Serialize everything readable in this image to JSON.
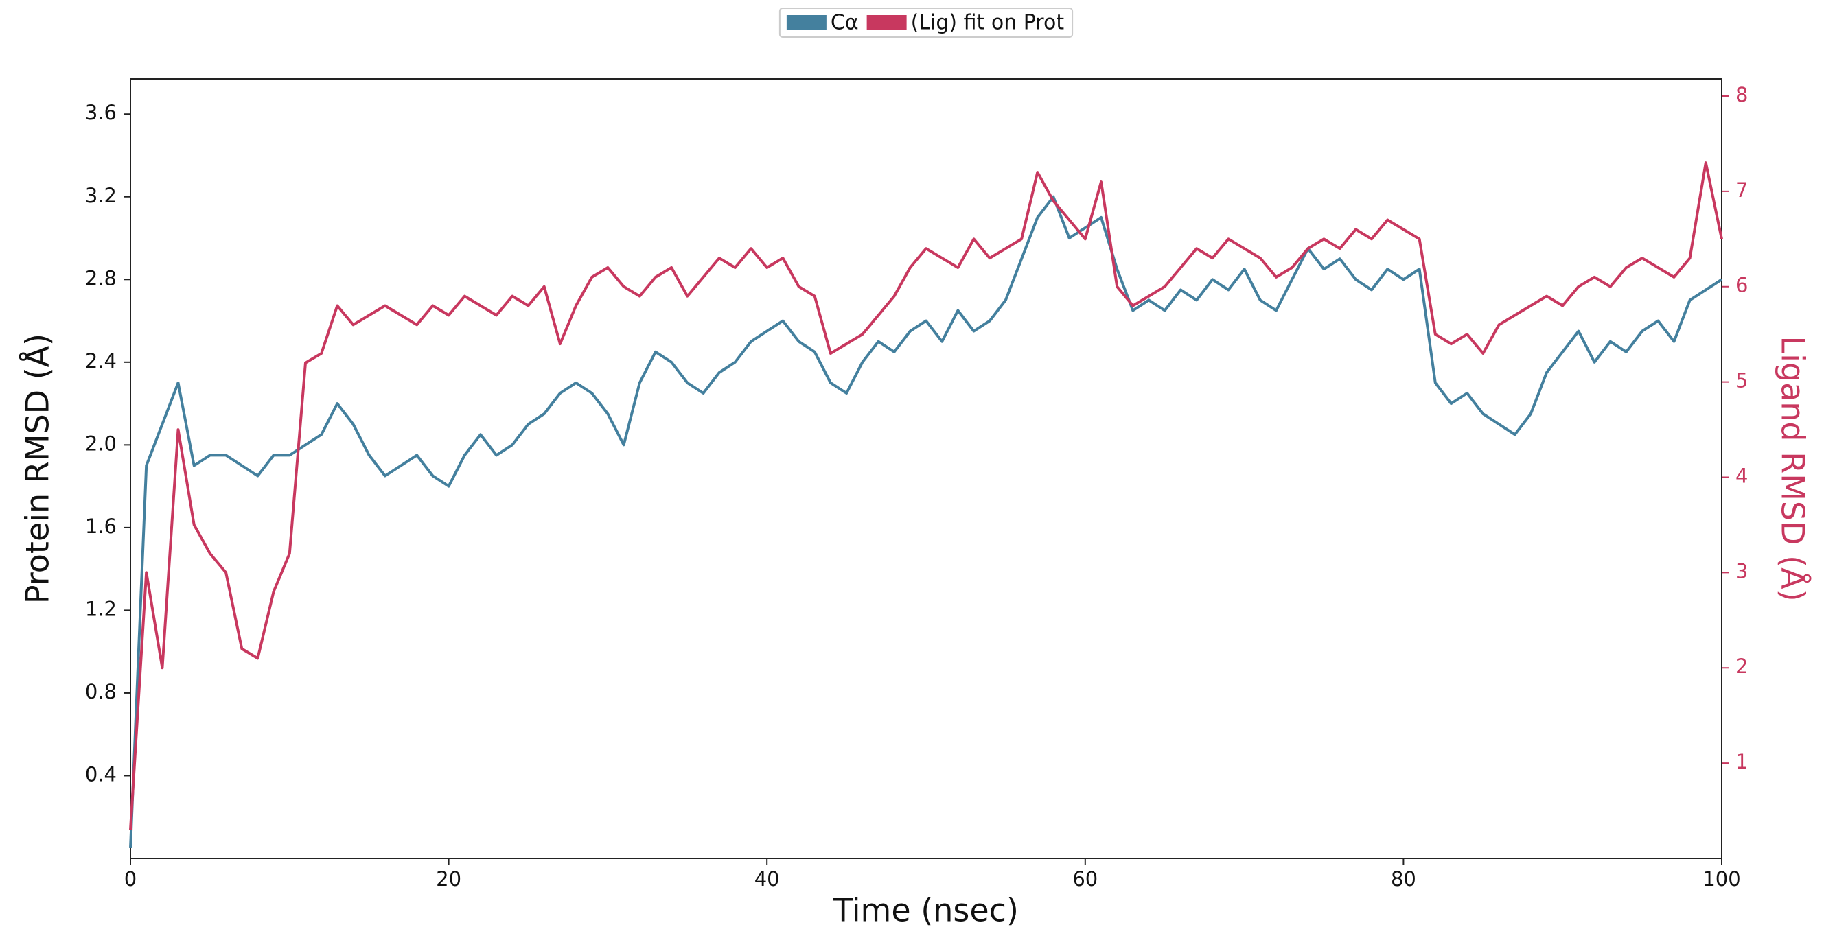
{
  "chart_data": {
    "type": "line",
    "x_label": "Time (nsec)",
    "y_label": "Protein RMSD (Å)",
    "y2_label": "Ligand RMSD (Å)",
    "x": [
      0,
      1,
      2,
      3,
      4,
      5,
      6,
      7,
      8,
      9,
      10,
      11,
      12,
      13,
      14,
      15,
      16,
      17,
      18,
      19,
      20,
      21,
      22,
      23,
      24,
      25,
      26,
      27,
      28,
      29,
      30,
      31,
      32,
      33,
      34,
      35,
      36,
      37,
      38,
      39,
      40,
      41,
      42,
      43,
      44,
      45,
      46,
      47,
      48,
      49,
      50,
      51,
      52,
      53,
      54,
      55,
      56,
      57,
      58,
      59,
      60,
      61,
      62,
      63,
      64,
      65,
      66,
      67,
      68,
      69,
      70,
      71,
      72,
      73,
      74,
      75,
      76,
      77,
      78,
      79,
      80,
      81,
      82,
      83,
      84,
      85,
      86,
      87,
      88,
      89,
      90,
      91,
      92,
      93,
      94,
      95,
      96,
      97,
      98,
      99,
      100
    ],
    "series": [
      {
        "name": "Cα",
        "color": "#44809e",
        "values": [
          0.05,
          1.9,
          2.1,
          2.3,
          1.9,
          1.95,
          1.95,
          1.9,
          1.85,
          1.95,
          1.95,
          2.0,
          2.05,
          2.2,
          2.1,
          1.95,
          1.85,
          1.9,
          1.95,
          1.85,
          1.8,
          1.95,
          2.05,
          1.95,
          2.0,
          2.1,
          2.15,
          2.25,
          2.3,
          2.25,
          2.15,
          2.0,
          2.3,
          2.45,
          2.4,
          2.3,
          2.25,
          2.35,
          2.4,
          2.5,
          2.55,
          2.6,
          2.5,
          2.45,
          2.3,
          2.25,
          2.4,
          2.5,
          2.45,
          2.55,
          2.6,
          2.5,
          2.65,
          2.55,
          2.6,
          2.7,
          2.9,
          3.1,
          3.2,
          3.0,
          3.05,
          3.1,
          2.85,
          2.65,
          2.7,
          2.65,
          2.75,
          2.7,
          2.8,
          2.75,
          2.85,
          2.7,
          2.65,
          2.8,
          2.95,
          2.85,
          2.9,
          2.8,
          2.75,
          2.85,
          2.8,
          2.85,
          2.3,
          2.2,
          2.25,
          2.15,
          2.1,
          2.05,
          2.15,
          2.35,
          2.45,
          2.55,
          2.4,
          2.5,
          2.45,
          2.55,
          2.6,
          2.5,
          2.7,
          2.75,
          2.8
        ]
      },
      {
        "name": "(Lig) fit on Prot",
        "color": "#c8385f",
        "axis": "y2",
        "values": [
          0.3,
          3.0,
          2.0,
          4.5,
          3.5,
          3.2,
          3.0,
          2.2,
          2.1,
          2.8,
          3.2,
          5.2,
          5.3,
          5.8,
          5.6,
          5.7,
          5.8,
          5.7,
          5.6,
          5.8,
          5.7,
          5.9,
          5.8,
          5.7,
          5.9,
          5.8,
          6.0,
          5.4,
          5.8,
          6.1,
          6.2,
          6.0,
          5.9,
          6.1,
          6.2,
          5.9,
          6.1,
          6.3,
          6.2,
          6.4,
          6.2,
          6.3,
          6.0,
          5.9,
          5.3,
          5.4,
          5.5,
          5.7,
          5.9,
          6.2,
          6.4,
          6.3,
          6.2,
          6.5,
          6.3,
          6.4,
          6.5,
          7.2,
          6.9,
          6.7,
          6.5,
          7.1,
          6.0,
          5.8,
          5.9,
          6.0,
          6.2,
          6.4,
          6.3,
          6.5,
          6.4,
          6.3,
          6.1,
          6.2,
          6.4,
          6.5,
          6.4,
          6.6,
          6.5,
          6.7,
          6.6,
          6.5,
          5.5,
          5.4,
          5.5,
          5.3,
          5.6,
          5.7,
          5.8,
          5.9,
          5.8,
          6.0,
          6.1,
          6.0,
          6.2,
          6.3,
          6.2,
          6.1,
          6.3,
          7.3,
          6.5
        ]
      }
    ],
    "xlim": [
      0,
      100
    ],
    "xticks": [
      0,
      20,
      40,
      60,
      80,
      100
    ],
    "ylim": [
      0,
      3.77
    ],
    "yticks": [
      0.4,
      0.8,
      1.2,
      1.6,
      {
        "value": 2,
        "label": "2.0"
      },
      2.4,
      2.8,
      3.2,
      3.6
    ],
    "y2lim": [
      0,
      8.18
    ],
    "y2ticks": [
      1,
      2,
      3,
      4,
      5,
      6,
      7,
      8
    ],
    "legend": "top"
  }
}
